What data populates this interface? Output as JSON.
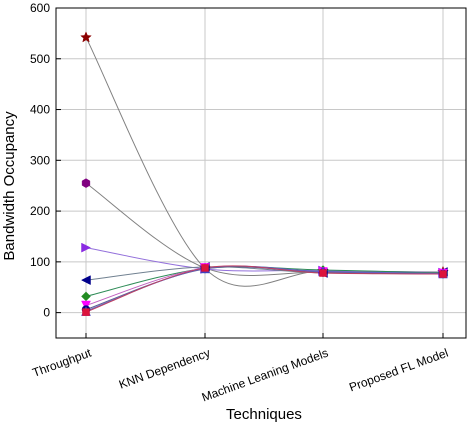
{
  "chart_data": {
    "type": "line",
    "xlabel": "Techniques",
    "ylabel": "Bandwidth Occupancy",
    "categories": [
      "Throughput",
      "KNN Dependency",
      "Machine Leaning Models",
      "Proposed FL Model"
    ],
    "ylim": [
      -50,
      600
    ],
    "yticks": [
      0,
      100,
      200,
      300,
      400,
      500,
      600
    ],
    "grid": true,
    "smooth": true,
    "series": [
      {
        "marker": "star",
        "color": "#8b0000",
        "values": [
          542,
          87,
          82,
          80
        ]
      },
      {
        "marker": "hexagon",
        "color": "#800080",
        "values": [
          255,
          88,
          80,
          78
        ]
      },
      {
        "marker": "triangle-right",
        "color": "#8a2be2",
        "values": [
          128,
          86,
          83,
          79
        ]
      },
      {
        "marker": "triangle-left",
        "color": "#00008b",
        "values": [
          64,
          90,
          78,
          80
        ]
      },
      {
        "marker": "diamond",
        "color": "#228b22",
        "values": [
          32,
          87,
          84,
          78
        ]
      },
      {
        "marker": "triangle-down",
        "color": "#ff00ff",
        "values": [
          14,
          88,
          80,
          77
        ]
      },
      {
        "marker": "circle",
        "color": "#000080",
        "values": [
          6,
          86,
          79,
          76
        ]
      },
      {
        "marker": "triangle-up",
        "color": "#4040c0",
        "values": [
          3,
          87,
          81,
          77
        ]
      },
      {
        "marker": "square",
        "color": "#dc143c",
        "values": [
          1,
          88,
          78,
          76
        ]
      }
    ]
  }
}
